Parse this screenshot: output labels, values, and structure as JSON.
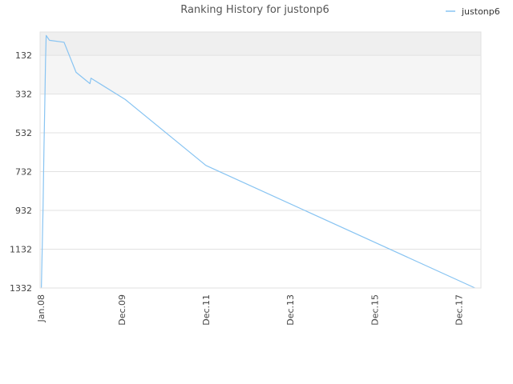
{
  "chart_data": {
    "type": "line",
    "title": "Ranking History for justonp6",
    "xlabel": "",
    "ylabel": "",
    "y_inverted": true,
    "ylim": [
      1332,
      12
    ],
    "xlim": [
      "2007-12-25",
      "2018-06-10"
    ],
    "yticks": [
      132,
      332,
      532,
      732,
      932,
      1132,
      1332
    ],
    "xticks": [
      {
        "label": "Jan.08",
        "date": "2008-01-01"
      },
      {
        "label": "Dec.09",
        "date": "2009-12-01"
      },
      {
        "label": "Dec.11",
        "date": "2011-12-01"
      },
      {
        "label": "Dec.13",
        "date": "2013-12-01"
      },
      {
        "label": "Dec.15",
        "date": "2015-12-01"
      },
      {
        "label": "Dec.17",
        "date": "2017-12-01"
      }
    ],
    "grid": true,
    "band_colors": [
      "#efefef",
      "#f5f5f5",
      "#ffffff"
    ],
    "legend_position": "top-right",
    "series": [
      {
        "name": "justonp6",
        "color": "#88c4f2",
        "points": [
          {
            "x": "2008-01-05",
            "y": 1332
          },
          {
            "x": "2008-01-12",
            "y": 1140
          },
          {
            "x": "2008-01-20",
            "y": 920
          },
          {
            "x": "2008-01-28",
            "y": 600
          },
          {
            "x": "2008-02-04",
            "y": 380
          },
          {
            "x": "2008-02-10",
            "y": 160
          },
          {
            "x": "2008-02-16",
            "y": 30
          },
          {
            "x": "2008-03-15",
            "y": 55
          },
          {
            "x": "2008-07-20",
            "y": 65
          },
          {
            "x": "2008-11-01",
            "y": 220
          },
          {
            "x": "2009-03-01",
            "y": 278
          },
          {
            "x": "2009-03-10",
            "y": 250
          },
          {
            "x": "2010-01-01",
            "y": 360
          },
          {
            "x": "2011-12-01",
            "y": 700
          },
          {
            "x": "2018-04-20",
            "y": 1332
          }
        ]
      }
    ]
  }
}
